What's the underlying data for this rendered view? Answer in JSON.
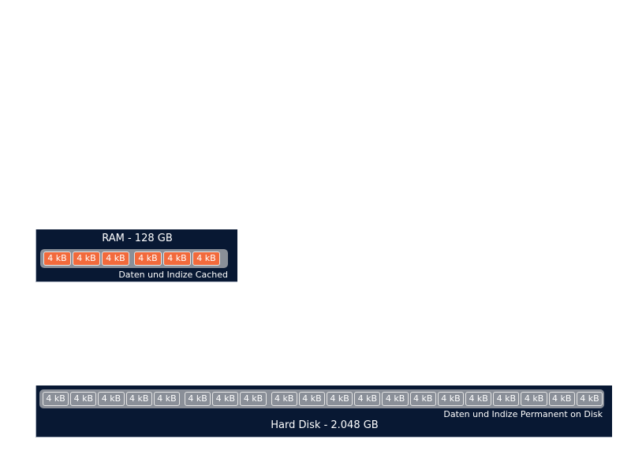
{
  "ram": {
    "title": "RAM - 128 GB",
    "caption": "Daten und Indize Cached",
    "block_color": "#f26a3c",
    "blocks": [
      "4 kB",
      "4 kB",
      "4 kB",
      "4 kB",
      "4 kB",
      "4 kB"
    ]
  },
  "disk": {
    "title": "Hard Disk - 2.048 GB",
    "caption": "Daten und Indize Permanent on Disk",
    "block_color": "#8a8f98",
    "blocks": [
      "4 kB",
      "4 kB",
      "4 kB",
      "4 kB",
      "4 kB",
      "4 kB",
      "4 kB",
      "4 kB",
      "4 kB",
      "4 kB",
      "4 kB",
      "4 kB",
      "4 kB",
      "4 kB",
      "4 kB",
      "4 kB",
      "4 kB",
      "4 kB",
      "4 kB",
      "4 kB"
    ]
  },
  "colors": {
    "panel_background": "#081833",
    "tray_background": "#8a8f98"
  }
}
